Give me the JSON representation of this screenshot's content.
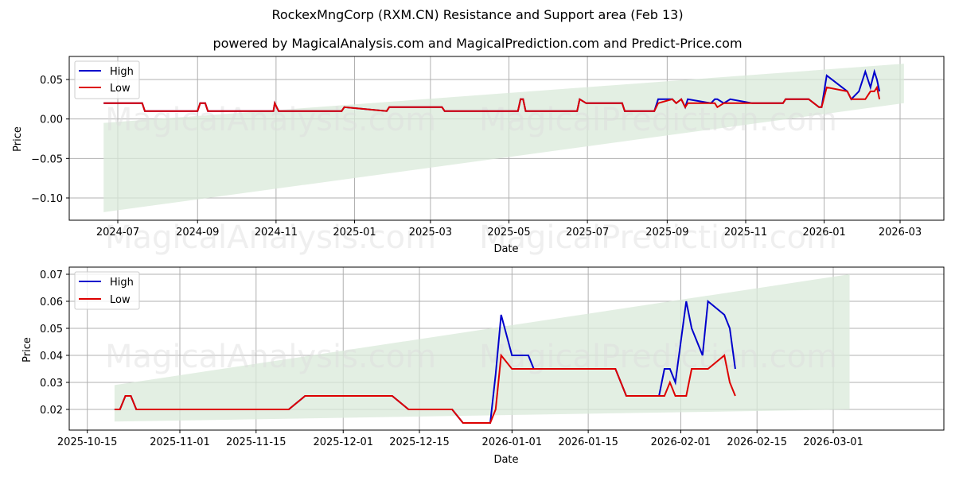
{
  "header": {
    "title": "RockexMngCorp (RXM.CN) Resistance and Support area (Feb 13)",
    "subtitle": "powered by MagicalAnalysis.com and MagicalPrediction.com and Predict-Price.com"
  },
  "watermarks": [
    "MagicalAnalysis.com",
    "MagicalPrediction.com"
  ],
  "colors": {
    "high": "#0000cc",
    "low": "#dd0000",
    "band": "#d9ead9"
  },
  "chart_data": [
    {
      "type": "line",
      "title": "",
      "xlabel": "Date",
      "ylabel": "Price",
      "ylim": [
        -0.127,
        0.078
      ],
      "grid": true,
      "legend_position": "upper left",
      "legend": [
        "High",
        "Low"
      ],
      "x_ticks": [
        "2024-07",
        "2024-09",
        "2024-11",
        "2025-01",
        "2025-03",
        "2025-05",
        "2025-07",
        "2025-09",
        "2025-11",
        "2026-01",
        "2026-03"
      ],
      "y_ticks": [
        "0.05",
        "0.00",
        "−0.05",
        "−0.10"
      ],
      "support_band": {
        "x_start": "2024-06-20",
        "x_end": "2026-03-04",
        "lower_start": -0.118,
        "lower_end": 0.02,
        "upper_start": -0.005,
        "upper_end": 0.07
      },
      "x": [
        "2024-06-20",
        "2024-07-20",
        "2024-07-22",
        "2024-09-01",
        "2024-09-03",
        "2024-09-07",
        "2024-09-09",
        "2024-10-30",
        "2024-10-31",
        "2024-11-03",
        "2024-12-22",
        "2024-12-24",
        "2025-01-26",
        "2025-01-28",
        "2025-03-10",
        "2025-03-12",
        "2025-05-08",
        "2025-05-10",
        "2025-05-12",
        "2025-05-14",
        "2025-06-23",
        "2025-06-25",
        "2025-06-30",
        "2025-07-02",
        "2025-07-28",
        "2025-07-30",
        "2025-08-22",
        "2025-08-25",
        "2025-09-05",
        "2025-09-08",
        "2025-09-12",
        "2025-09-15",
        "2025-09-17",
        "2025-10-05",
        "2025-10-08",
        "2025-10-10",
        "2025-10-15",
        "2025-10-20",
        "2025-11-06",
        "2025-11-30",
        "2025-12-02",
        "2025-12-20",
        "2025-12-24",
        "2025-12-28",
        "2025-12-30",
        "2026-01-03",
        "2026-01-19",
        "2026-01-22",
        "2026-01-28",
        "2026-02-02",
        "2026-02-06",
        "2026-02-09",
        "2026-02-11",
        "2026-02-13"
      ],
      "series": [
        {
          "name": "High",
          "values": [
            0.02,
            0.02,
            0.01,
            0.01,
            0.02,
            0.02,
            0.01,
            0.01,
            0.02,
            0.01,
            0.01,
            0.015,
            0.01,
            0.015,
            0.015,
            0.01,
            0.01,
            0.025,
            0.025,
            0.01,
            0.01,
            0.025,
            0.02,
            0.02,
            0.02,
            0.01,
            0.01,
            0.025,
            0.025,
            0.02,
            0.025,
            0.015,
            0.025,
            0.02,
            0.025,
            0.025,
            0.02,
            0.025,
            0.02,
            0.02,
            0.025,
            0.025,
            0.02,
            0.015,
            0.015,
            0.055,
            0.035,
            0.025,
            0.035,
            0.06,
            0.04,
            0.06,
            0.05,
            0.035
          ]
        },
        {
          "name": "Low",
          "values": [
            0.02,
            0.02,
            0.01,
            0.01,
            0.02,
            0.02,
            0.01,
            0.01,
            0.02,
            0.01,
            0.01,
            0.015,
            0.01,
            0.015,
            0.015,
            0.01,
            0.01,
            0.025,
            0.025,
            0.01,
            0.01,
            0.025,
            0.02,
            0.02,
            0.02,
            0.01,
            0.01,
            0.02,
            0.025,
            0.02,
            0.025,
            0.015,
            0.02,
            0.02,
            0.02,
            0.015,
            0.02,
            0.02,
            0.02,
            0.02,
            0.025,
            0.025,
            0.02,
            0.015,
            0.015,
            0.04,
            0.035,
            0.025,
            0.025,
            0.025,
            0.035,
            0.035,
            0.04,
            0.025
          ]
        }
      ]
    },
    {
      "type": "line",
      "title": "",
      "xlabel": "Date",
      "ylabel": "Price",
      "ylim": [
        0.0125,
        0.0727
      ],
      "grid": true,
      "legend_position": "upper left",
      "legend": [
        "High",
        "Low"
      ],
      "x_ticks": [
        "2025-10-15",
        "2025-11-01",
        "2025-11-15",
        "2025-12-01",
        "2025-12-15",
        "2026-01-01",
        "2026-01-15",
        "2026-02-01",
        "2026-02-15",
        "2026-03-01"
      ],
      "y_ticks": [
        "0.07",
        "0.06",
        "0.05",
        "0.04",
        "0.03",
        "0.02"
      ],
      "support_band": {
        "x_start": "2025-10-20",
        "x_end": "2026-03-04",
        "lower_start": 0.0155,
        "lower_end": 0.02,
        "upper_start": 0.029,
        "upper_end": 0.07
      },
      "x": [
        "2025-10-20",
        "2025-10-21",
        "2025-10-22",
        "2025-10-23",
        "2025-10-24",
        "2025-11-21",
        "2025-11-24",
        "2025-12-10",
        "2025-12-13",
        "2025-12-21",
        "2025-12-23",
        "2025-12-28",
        "2025-12-29",
        "2025-12-30",
        "2026-01-01",
        "2026-01-04",
        "2026-01-05",
        "2026-01-20",
        "2026-01-22",
        "2026-01-28",
        "2026-01-29",
        "2026-01-30",
        "2026-01-31",
        "2026-02-02",
        "2026-02-03",
        "2026-02-05",
        "2026-02-06",
        "2026-02-09",
        "2026-02-10",
        "2026-02-11"
      ],
      "series": [
        {
          "name": "High",
          "values": [
            0.02,
            0.02,
            0.025,
            0.025,
            0.02,
            0.02,
            0.025,
            0.025,
            0.02,
            0.02,
            0.015,
            0.015,
            0.033,
            0.055,
            0.04,
            0.04,
            0.035,
            0.035,
            0.025,
            0.025,
            0.035,
            0.035,
            0.03,
            0.06,
            0.05,
            0.04,
            0.06,
            0.055,
            0.05,
            0.035
          ]
        },
        {
          "name": "Low",
          "values": [
            0.02,
            0.02,
            0.025,
            0.025,
            0.02,
            0.02,
            0.025,
            0.025,
            0.02,
            0.02,
            0.015,
            0.015,
            0.02,
            0.04,
            0.035,
            0.035,
            0.035,
            0.035,
            0.025,
            0.025,
            0.025,
            0.03,
            0.025,
            0.025,
            0.035,
            0.035,
            0.035,
            0.04,
            0.03,
            0.025
          ]
        }
      ]
    }
  ]
}
